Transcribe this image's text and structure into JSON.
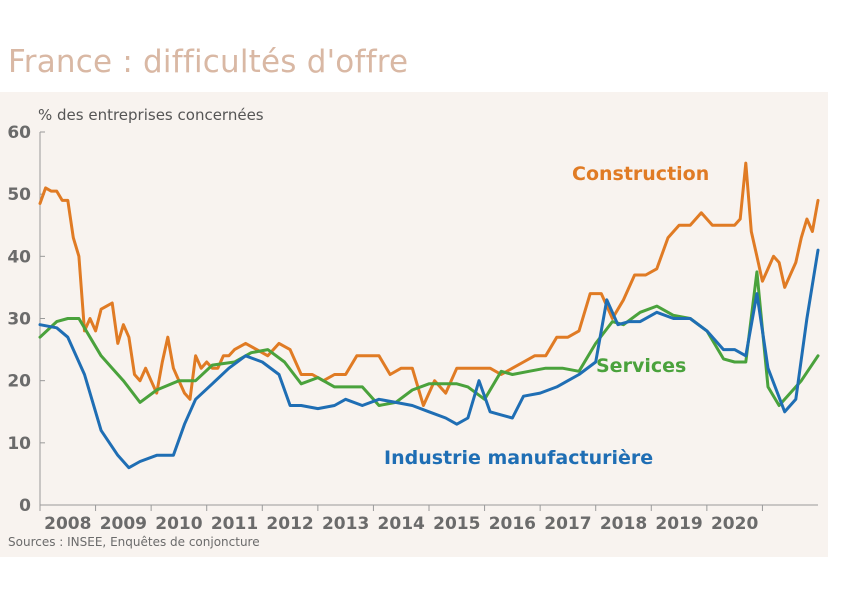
{
  "title": "France : difficultés d'offre",
  "source": "Sources : INSEE, Enquêtes de conjoncture",
  "chart_data": {
    "type": "line",
    "ylabel": "% des entreprises concernées",
    "ylim": [
      0,
      60
    ],
    "yticks": [
      0,
      10,
      20,
      30,
      40,
      50,
      60
    ],
    "xlim": [
      2007.5,
      2021.5
    ],
    "xticks": [
      "2008",
      "2009",
      "2010",
      "2011",
      "2012",
      "2013",
      "2014",
      "2015",
      "2016",
      "2017",
      "2018",
      "2019",
      "2020"
    ],
    "grid": false,
    "colors": {
      "construction": "#e07b24",
      "services": "#4aa23c",
      "industrie": "#1f6eb4",
      "axis": "#9a9a9a"
    },
    "series": [
      {
        "name": "Construction",
        "x": [
          2007.5,
          2007.6,
          2007.7,
          2007.8,
          2007.9,
          2008.0,
          2008.1,
          2008.2,
          2008.3,
          2008.4,
          2008.5,
          2008.6,
          2008.7,
          2008.8,
          2008.9,
          2009.0,
          2009.1,
          2009.2,
          2009.3,
          2009.4,
          2009.5,
          2009.6,
          2009.7,
          2009.8,
          2009.9,
          2010.0,
          2010.1,
          2010.2,
          2010.3,
          2010.4,
          2010.5,
          2010.6,
          2010.7,
          2010.8,
          2010.9,
          2011.0,
          2011.2,
          2011.4,
          2011.6,
          2011.8,
          2012.0,
          2012.2,
          2012.4,
          2012.6,
          2012.8,
          2013.0,
          2013.2,
          2013.4,
          2013.6,
          2013.8,
          2014.0,
          2014.2,
          2014.4,
          2014.6,
          2014.8,
          2015.0,
          2015.2,
          2015.4,
          2015.6,
          2015.8,
          2016.0,
          2016.2,
          2016.4,
          2016.6,
          2016.8,
          2017.0,
          2017.2,
          2017.4,
          2017.6,
          2017.8,
          2018.0,
          2018.2,
          2018.4,
          2018.6,
          2018.8,
          2019.0,
          2019.2,
          2019.4,
          2019.6,
          2019.8,
          2020.0,
          2020.1,
          2020.2,
          2020.3,
          2020.4,
          2020.5,
          2020.6,
          2020.7,
          2020.8,
          2020.9,
          2021.0,
          2021.1,
          2021.2,
          2021.3,
          2021.4,
          2021.5
        ],
        "values": [
          48.5,
          51,
          50.5,
          50.5,
          49,
          49,
          43,
          40,
          28,
          30,
          28,
          31.5,
          32,
          32.5,
          26,
          29,
          27,
          21,
          20,
          22,
          20,
          18,
          23,
          27,
          22,
          20,
          18,
          17,
          24,
          22,
          23,
          22,
          22,
          24,
          24,
          25,
          26,
          25,
          24,
          26,
          25,
          21,
          21,
          20,
          21,
          21,
          24,
          24,
          24,
          21,
          22,
          22,
          16,
          20,
          18,
          22,
          22,
          22,
          22,
          21,
          22,
          23,
          24,
          24,
          27,
          27,
          28,
          34,
          34,
          30,
          33,
          37,
          37,
          38,
          43,
          45,
          45,
          47,
          45,
          45,
          45,
          46,
          55,
          44,
          40,
          36,
          38,
          40,
          39,
          35,
          37,
          39,
          43,
          46,
          44,
          49
        ]
      },
      {
        "name": "Services",
        "x": [
          2007.5,
          2007.8,
          2008.0,
          2008.2,
          2008.4,
          2008.6,
          2008.8,
          2009.0,
          2009.3,
          2009.6,
          2010.0,
          2010.3,
          2010.6,
          2011.0,
          2011.3,
          2011.6,
          2011.9,
          2012.2,
          2012.5,
          2012.8,
          2013.0,
          2013.3,
          2013.6,
          2013.9,
          2014.2,
          2014.5,
          2014.8,
          2015.0,
          2015.2,
          2015.5,
          2015.8,
          2016.0,
          2016.3,
          2016.6,
          2016.9,
          2017.2,
          2017.5,
          2017.8,
          2018.0,
          2018.3,
          2018.6,
          2018.9,
          2019.2,
          2019.5,
          2019.8,
          2020.0,
          2020.2,
          2020.4,
          2020.6,
          2020.8,
          2021.0,
          2021.2,
          2021.5
        ],
        "values": [
          27,
          29.5,
          30,
          30,
          27,
          24,
          22,
          20,
          16.5,
          18.5,
          20,
          20,
          22.5,
          23,
          24.5,
          25,
          23,
          19.5,
          20.5,
          19,
          19,
          19,
          16,
          16.5,
          18.5,
          19.5,
          19.5,
          19.5,
          19,
          17,
          21.5,
          21,
          21.5,
          22,
          22,
          21.5,
          26,
          29.5,
          29,
          31,
          32,
          30.5,
          30,
          28,
          23.5,
          23,
          23,
          37.5,
          19,
          16,
          18,
          20,
          24
        ]
      },
      {
        "name": "Industrie manufacturière",
        "x": [
          2007.5,
          2007.8,
          2008.0,
          2008.3,
          2008.6,
          2008.9,
          2009.1,
          2009.3,
          2009.6,
          2009.9,
          2010.1,
          2010.3,
          2010.6,
          2010.9,
          2011.2,
          2011.5,
          2011.8,
          2012.0,
          2012.2,
          2012.5,
          2012.8,
          2013.0,
          2013.3,
          2013.6,
          2013.9,
          2014.2,
          2014.5,
          2014.8,
          2015.0,
          2015.2,
          2015.4,
          2015.6,
          2015.8,
          2016.0,
          2016.2,
          2016.5,
          2016.8,
          2017.0,
          2017.2,
          2017.5,
          2017.7,
          2017.9,
          2018.1,
          2018.3,
          2018.6,
          2018.9,
          2019.2,
          2019.5,
          2019.8,
          2020.0,
          2020.2,
          2020.4,
          2020.6,
          2020.9,
          2021.1,
          2021.3,
          2021.5
        ],
        "values": [
          29,
          28.5,
          27,
          21,
          12,
          8,
          6,
          7,
          8,
          8,
          13,
          17,
          19.5,
          22,
          24,
          23,
          21,
          16,
          16,
          15.5,
          16,
          17,
          16,
          17,
          16.5,
          16,
          15,
          14,
          13,
          14,
          20,
          15,
          14.5,
          14,
          17.5,
          18,
          19,
          20,
          21,
          23,
          33,
          29,
          29.5,
          29.5,
          31,
          30,
          30,
          28,
          25,
          25,
          24,
          34,
          22,
          15,
          17,
          30,
          41
        ]
      }
    ]
  },
  "labels": {
    "construction": "Construction",
    "services": "Services",
    "industrie": "Industrie manufacturière"
  }
}
